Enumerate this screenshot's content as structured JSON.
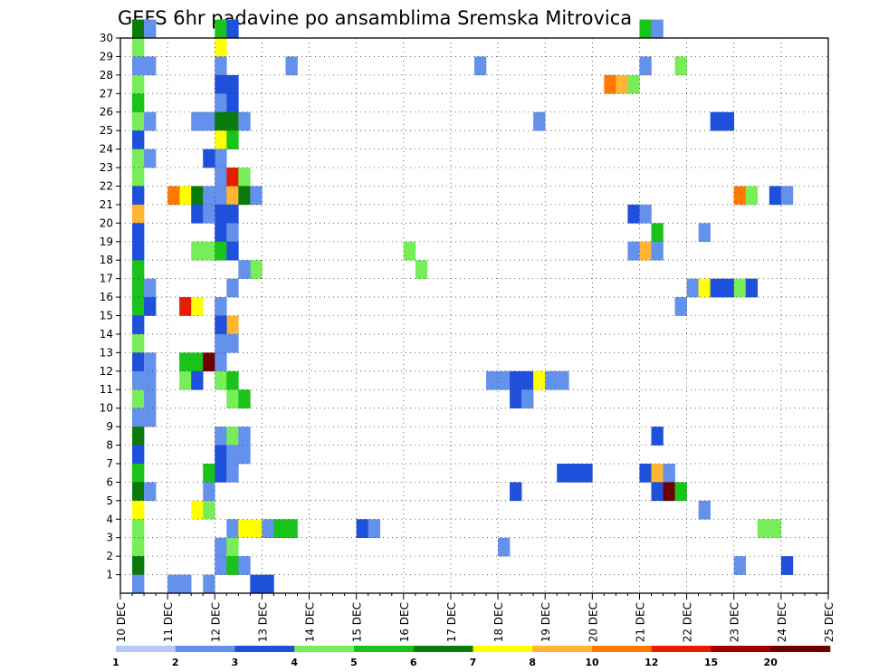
{
  "chart_data": {
    "type": "heatmap",
    "title": "GEFS 6hr padavine po ansamblima Sremska Mitrovica",
    "x_tick_labels": [
      "10 DEC",
      "11 DEC",
      "12 DEC",
      "13 DEC",
      "14 DEC",
      "15 DEC",
      "16 DEC",
      "17 DEC",
      "18 DEC",
      "19 DEC",
      "20 DEC",
      "21 DEC",
      "22 DEC",
      "23 DEC",
      "24 DEC",
      "25 DEC"
    ],
    "xlim": [
      0,
      60
    ],
    "y_tick_labels": [
      "1",
      "2",
      "3",
      "4",
      "5",
      "6",
      "7",
      "8",
      "9",
      "10",
      "11",
      "12",
      "13",
      "14",
      "15",
      "16",
      "17",
      "18",
      "19",
      "20",
      "21",
      "22",
      "23",
      "24",
      "25",
      "26",
      "27",
      "28",
      "29",
      "30"
    ],
    "ylim": [
      0,
      30
    ],
    "grid": true,
    "colorbar": {
      "labels": [
        "1",
        "2",
        "3",
        "4",
        "5",
        "6",
        "7",
        "8",
        "10",
        "12",
        "15",
        "20"
      ],
      "colors": [
        "#b4c8f5",
        "#6491eb",
        "#1e50dc",
        "#78ed5a",
        "#19c319",
        "#0a7a0a",
        "#ffff00",
        "#ffb432",
        "#ff7800",
        "#e61e00",
        "#a00000",
        "#6e0000"
      ]
    },
    "cells": [
      [
        30,
        1,
        5
      ],
      [
        30,
        2,
        1
      ],
      [
        30,
        8,
        4
      ],
      [
        30,
        9,
        2
      ],
      [
        30,
        44,
        4
      ],
      [
        30,
        45,
        1
      ],
      [
        29,
        1,
        3
      ],
      [
        29,
        8,
        6
      ],
      [
        28,
        1,
        1
      ],
      [
        28,
        2,
        1
      ],
      [
        28,
        8,
        1
      ],
      [
        28,
        14,
        1
      ],
      [
        28,
        30,
        1
      ],
      [
        28,
        44,
        1
      ],
      [
        28,
        47,
        3
      ],
      [
        27,
        1,
        3
      ],
      [
        27,
        8,
        2
      ],
      [
        27,
        9,
        2
      ],
      [
        27,
        41,
        8
      ],
      [
        27,
        42,
        7
      ],
      [
        27,
        43,
        3
      ],
      [
        26,
        1,
        4
      ],
      [
        26,
        8,
        1
      ],
      [
        26,
        9,
        2
      ],
      [
        25,
        1,
        3
      ],
      [
        25,
        2,
        1
      ],
      [
        25,
        6,
        1
      ],
      [
        25,
        7,
        1
      ],
      [
        25,
        8,
        5
      ],
      [
        25,
        9,
        5
      ],
      [
        25,
        10,
        1
      ],
      [
        25,
        35,
        1
      ],
      [
        25,
        50,
        2
      ],
      [
        25,
        51,
        2
      ],
      [
        24,
        1,
        2
      ],
      [
        24,
        8,
        6
      ],
      [
        24,
        9,
        4
      ],
      [
        23,
        1,
        3
      ],
      [
        23,
        2,
        1
      ],
      [
        23,
        8,
        1
      ],
      [
        23,
        7,
        2
      ],
      [
        22,
        1,
        3
      ],
      [
        22,
        8,
        1
      ],
      [
        22,
        9,
        9
      ],
      [
        22,
        10,
        3
      ],
      [
        21,
        1,
        2
      ],
      [
        21,
        8,
        1
      ],
      [
        21,
        9,
        7
      ],
      [
        21,
        10,
        5
      ],
      [
        21,
        11,
        1
      ],
      [
        21,
        5,
        6
      ],
      [
        21,
        6,
        5
      ],
      [
        21,
        7,
        1
      ],
      [
        21,
        4,
        8
      ],
      [
        21,
        52,
        8
      ],
      [
        21,
        53,
        3
      ],
      [
        21,
        55,
        2
      ],
      [
        21,
        56,
        1
      ],
      [
        20,
        1,
        7
      ],
      [
        20,
        8,
        2
      ],
      [
        20,
        9,
        2
      ],
      [
        20,
        6,
        2
      ],
      [
        20,
        7,
        1
      ],
      [
        20,
        43,
        2
      ],
      [
        20,
        44,
        1
      ],
      [
        19,
        1,
        2
      ],
      [
        19,
        8,
        2
      ],
      [
        19,
        9,
        1
      ],
      [
        19,
        45,
        4
      ],
      [
        19,
        49,
        1
      ],
      [
        18,
        1,
        2
      ],
      [
        18,
        6,
        3
      ],
      [
        18,
        7,
        3
      ],
      [
        18,
        8,
        4
      ],
      [
        18,
        9,
        2
      ],
      [
        18,
        24,
        3
      ],
      [
        18,
        43,
        1
      ],
      [
        18,
        44,
        7
      ],
      [
        18,
        45,
        1
      ],
      [
        17,
        1,
        4
      ],
      [
        17,
        11,
        3
      ],
      [
        17,
        10,
        1
      ],
      [
        17,
        25,
        3
      ],
      [
        16,
        1,
        4
      ],
      [
        16,
        2,
        1
      ],
      [
        16,
        9,
        1
      ],
      [
        16,
        48,
        1
      ],
      [
        16,
        49,
        6
      ],
      [
        16,
        50,
        2
      ],
      [
        16,
        51,
        2
      ],
      [
        16,
        52,
        3
      ],
      [
        16,
        53,
        2
      ],
      [
        15,
        1,
        4
      ],
      [
        15,
        2,
        2
      ],
      [
        15,
        5,
        9
      ],
      [
        15,
        6,
        6
      ],
      [
        15,
        8,
        1
      ],
      [
        15,
        47,
        1
      ],
      [
        14,
        1,
        2
      ],
      [
        14,
        9,
        7
      ],
      [
        14,
        8,
        2
      ],
      [
        13,
        1,
        3
      ],
      [
        13,
        8,
        1
      ],
      [
        13,
        9,
        1
      ],
      [
        12,
        1,
        2
      ],
      [
        12,
        2,
        1
      ],
      [
        12,
        5,
        4
      ],
      [
        12,
        6,
        4
      ],
      [
        12,
        7,
        11
      ],
      [
        12,
        8,
        1
      ],
      [
        11,
        1,
        1
      ],
      [
        11,
        2,
        1
      ],
      [
        11,
        5,
        3
      ],
      [
        11,
        6,
        2
      ],
      [
        11,
        8,
        3
      ],
      [
        11,
        9,
        4
      ],
      [
        11,
        31,
        1
      ],
      [
        11,
        32,
        1
      ],
      [
        11,
        33,
        2
      ],
      [
        11,
        34,
        2
      ],
      [
        11,
        35,
        6
      ],
      [
        11,
        36,
        1
      ],
      [
        11,
        37,
        1
      ],
      [
        10,
        1,
        3
      ],
      [
        10,
        2,
        1
      ],
      [
        10,
        9,
        3
      ],
      [
        10,
        10,
        4
      ],
      [
        10,
        33,
        2
      ],
      [
        10,
        34,
        1
      ],
      [
        9,
        1,
        1
      ],
      [
        9,
        2,
        1
      ],
      [
        8,
        1,
        5
      ],
      [
        8,
        8,
        1
      ],
      [
        8,
        9,
        3
      ],
      [
        8,
        10,
        1
      ],
      [
        8,
        45,
        2
      ],
      [
        7,
        1,
        2
      ],
      [
        7,
        8,
        2
      ],
      [
        7,
        9,
        1
      ],
      [
        7,
        10,
        1
      ],
      [
        6,
        1,
        4
      ],
      [
        6,
        8,
        2
      ],
      [
        6,
        9,
        1
      ],
      [
        6,
        37,
        2
      ],
      [
        6,
        38,
        2
      ],
      [
        6,
        39,
        2
      ],
      [
        6,
        44,
        2
      ],
      [
        6,
        45,
        7
      ],
      [
        6,
        46,
        1
      ],
      [
        6,
        7,
        4
      ],
      [
        5,
        1,
        5
      ],
      [
        5,
        2,
        1
      ],
      [
        5,
        7,
        1
      ],
      [
        5,
        33,
        2
      ],
      [
        5,
        45,
        2
      ],
      [
        5,
        46,
        11
      ],
      [
        5,
        47,
        4
      ],
      [
        4,
        1,
        6
      ],
      [
        4,
        6,
        6
      ],
      [
        4,
        7,
        3
      ],
      [
        4,
        49,
        1
      ],
      [
        3,
        1,
        3
      ],
      [
        3,
        9,
        1
      ],
      [
        3,
        10,
        6
      ],
      [
        3,
        11,
        6
      ],
      [
        3,
        12,
        1
      ],
      [
        3,
        13,
        4
      ],
      [
        3,
        14,
        4
      ],
      [
        3,
        20,
        2
      ],
      [
        3,
        21,
        1
      ],
      [
        3,
        54,
        3
      ],
      [
        3,
        55,
        3
      ],
      [
        2,
        1,
        3
      ],
      [
        2,
        8,
        1
      ],
      [
        2,
        9,
        3
      ],
      [
        2,
        32,
        1
      ],
      [
        1,
        1,
        5
      ],
      [
        1,
        8,
        1
      ],
      [
        1,
        9,
        4
      ],
      [
        1,
        10,
        1
      ],
      [
        1,
        52,
        1
      ],
      [
        1,
        56,
        2
      ],
      [
        0,
        1,
        1
      ],
      [
        0,
        4,
        1
      ],
      [
        0,
        5,
        1
      ],
      [
        0,
        7,
        1
      ],
      [
        0,
        11,
        2
      ],
      [
        0,
        12,
        2
      ]
    ]
  }
}
